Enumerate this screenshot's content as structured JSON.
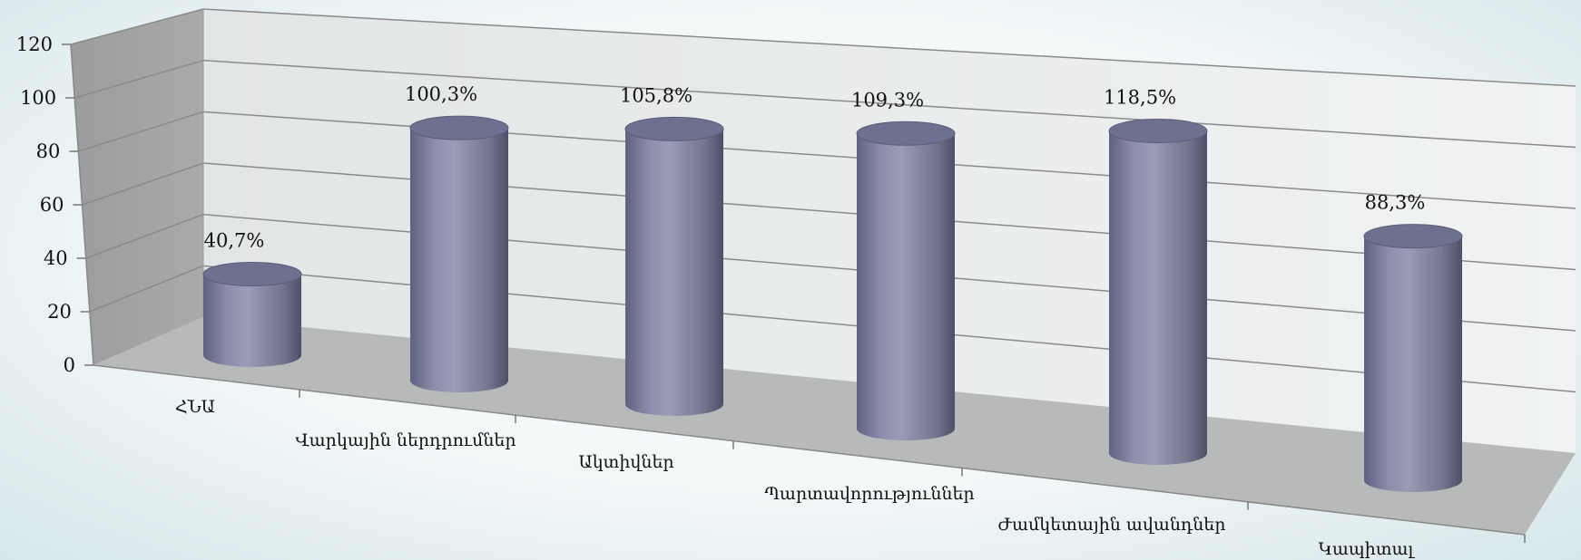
{
  "chart_data": {
    "type": "bar",
    "style": "3d-cylinder",
    "categories": [
      "ՀՆԱ",
      "Վարկային ներդրումներ",
      "Ակտիվներ",
      "Պարտավորություններ",
      "Ժամկետային ավանդներ",
      "Կապիտալ"
    ],
    "values": [
      40.7,
      100.3,
      105.8,
      109.3,
      118.5,
      88.3
    ],
    "data_labels": [
      "40,7%",
      "100,3%",
      "105,8%",
      "109,3%",
      "118,5%",
      "88,3%"
    ],
    "y_ticks": [
      "0",
      "20",
      "40",
      "60",
      "80",
      "100",
      "120"
    ],
    "ylim": [
      0,
      120
    ],
    "grid": true,
    "legend": "none",
    "colors": {
      "bar": "#8e90ad",
      "bar_dark": "#5d5f7a",
      "bar_top": "#6d6f8c",
      "side_wall": "#a2a2a2",
      "back_wall": "#e9ecec",
      "floor": "#b7b9b8",
      "gridline": "#8c8c8c"
    }
  }
}
